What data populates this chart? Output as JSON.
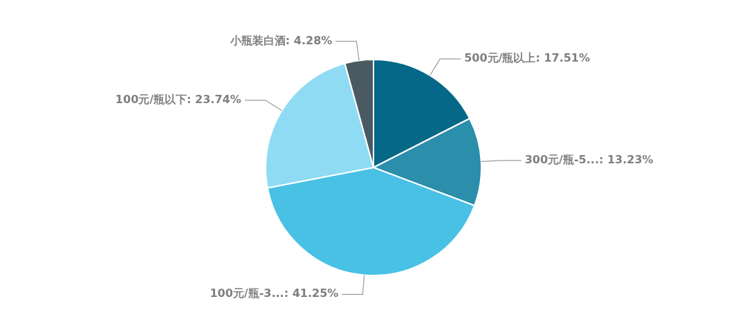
{
  "chart_data": {
    "type": "pie",
    "categories": [
      "500元/瓶以上",
      "300元/瓶-5...",
      "100元/瓶-3...",
      "100元/瓶以下",
      "小瓶装白酒"
    ],
    "values": [
      17.51,
      13.23,
      41.25,
      23.74,
      4.28
    ],
    "colors": [
      "#066888",
      "#2b8eab",
      "#48c1e4",
      "#8fdbf4",
      "#4b5a62"
    ],
    "value_labels": [
      "17.51%",
      "13.23%",
      "41.25%",
      "23.74%",
      "4.28%"
    ],
    "legend": false
  }
}
